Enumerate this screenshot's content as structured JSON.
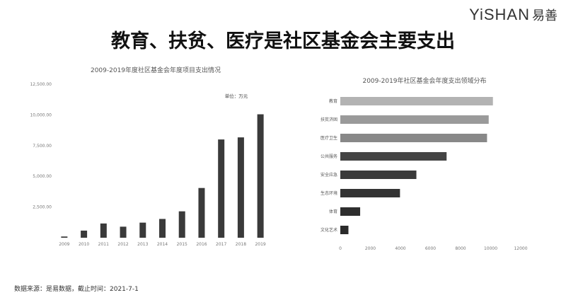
{
  "logo": {
    "latin": "YiSHAN",
    "cjk": "易善"
  },
  "headline": "教育、扶贫、医疗是社区基金会主要支出",
  "footer": "数据来源：是易数据，截止时间：2021-7-1",
  "chart_data": [
    {
      "type": "bar",
      "title": "2009-2019年度社区基金会年度项目支出情况",
      "unit_label": "单位：万元",
      "categories": [
        "2009",
        "2010",
        "2011",
        "2012",
        "2013",
        "2014",
        "2015",
        "2016",
        "2017",
        "2018",
        "2019"
      ],
      "values": [
        100,
        580,
        1160,
        900,
        1230,
        1530,
        2150,
        4050,
        8000,
        8170,
        10050
      ],
      "ylim": [
        0,
        12500
      ],
      "yticks": [
        0,
        2500,
        5000,
        7500,
        10000,
        12500
      ],
      "ytick_labels": [
        "",
        "2,500.00",
        "5,000.00",
        "7,500.00",
        "10,000.00",
        "12,500.00"
      ],
      "color": "#3a3a3a",
      "grid": false
    },
    {
      "type": "bar",
      "orientation": "horizontal",
      "title": "2009-2019年社区基金会年度支出领域分布",
      "categories": [
        "教育",
        "扶贫济困",
        "医疗卫生",
        "公共服务",
        "安全应急",
        "生态环境",
        "体育",
        "文化艺术"
      ],
      "values": [
        10150,
        9870,
        9760,
        7070,
        5060,
        3970,
        1320,
        540
      ],
      "xlim": [
        0,
        12000
      ],
      "xticks": [
        0,
        2000,
        4000,
        6000,
        8000,
        10000,
        12000
      ],
      "xtick_labels": [
        "0",
        "2000",
        "4000",
        "6000",
        "8000",
        "10000",
        "12000"
      ],
      "colors": [
        "#b3b3b3",
        "#9a9a9a",
        "#888888",
        "#444444",
        "#3a3a3a",
        "#333333",
        "#2e2e2e",
        "#2a2a2a"
      ],
      "grid": false
    }
  ]
}
